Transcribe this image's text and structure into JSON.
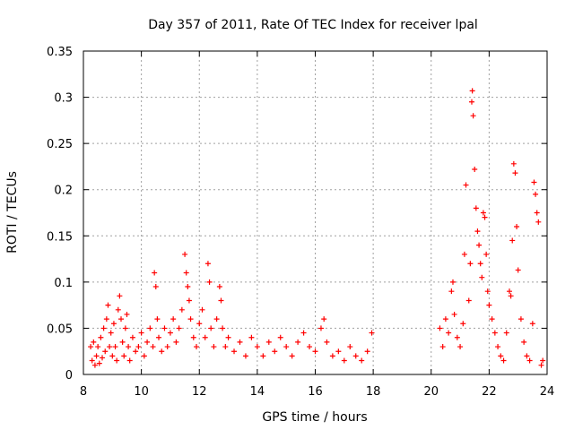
{
  "chart_data": {
    "type": "scatter",
    "title": "Day 357 of 2011, Rate Of TEC Index for receiver lpal",
    "xlabel": "GPS time / hours",
    "ylabel": "ROTI / TECUs",
    "xlim": [
      8,
      24
    ],
    "ylim": [
      0,
      0.35
    ],
    "xticks": [
      8,
      10,
      12,
      14,
      16,
      18,
      20,
      22,
      24
    ],
    "yticks": [
      0,
      0.05,
      0.1,
      0.15,
      0.2,
      0.25,
      0.3,
      0.35
    ],
    "xtick_labels": [
      "8",
      "10",
      "12",
      "14",
      "16",
      "18",
      "20",
      "22",
      "24"
    ],
    "ytick_labels": [
      "0",
      "0.05",
      "0.1",
      "0.15",
      "0.2",
      "0.25",
      "0.3",
      "0.35"
    ],
    "grid": true,
    "legend": "none",
    "marker": "plus",
    "color": "#ff0000",
    "series": [
      {
        "points": [
          [
            8.25,
            0.03
          ],
          [
            8.3,
            0.015
          ],
          [
            8.35,
            0.035
          ],
          [
            8.4,
            0.01
          ],
          [
            8.45,
            0.02
          ],
          [
            8.5,
            0.03
          ],
          [
            8.55,
            0.012
          ],
          [
            8.6,
            0.04
          ],
          [
            8.65,
            0.018
          ],
          [
            8.7,
            0.05
          ],
          [
            8.75,
            0.025
          ],
          [
            8.8,
            0.06
          ],
          [
            8.85,
            0.075
          ],
          [
            8.9,
            0.03
          ],
          [
            8.95,
            0.045
          ],
          [
            9.0,
            0.02
          ],
          [
            9.05,
            0.055
          ],
          [
            9.1,
            0.03
          ],
          [
            9.15,
            0.015
          ],
          [
            9.2,
            0.07
          ],
          [
            9.25,
            0.085
          ],
          [
            9.3,
            0.06
          ],
          [
            9.35,
            0.035
          ],
          [
            9.4,
            0.02
          ],
          [
            9.45,
            0.05
          ],
          [
            9.5,
            0.065
          ],
          [
            9.55,
            0.03
          ],
          [
            9.6,
            0.015
          ],
          [
            9.7,
            0.04
          ],
          [
            9.8,
            0.025
          ],
          [
            9.9,
            0.03
          ],
          [
            10.0,
            0.045
          ],
          [
            10.1,
            0.02
          ],
          [
            10.2,
            0.035
          ],
          [
            10.3,
            0.05
          ],
          [
            10.4,
            0.03
          ],
          [
            10.45,
            0.11
          ],
          [
            10.5,
            0.095
          ],
          [
            10.55,
            0.06
          ],
          [
            10.6,
            0.04
          ],
          [
            10.7,
            0.025
          ],
          [
            10.8,
            0.05
          ],
          [
            10.9,
            0.03
          ],
          [
            11.0,
            0.045
          ],
          [
            11.1,
            0.06
          ],
          [
            11.2,
            0.035
          ],
          [
            11.3,
            0.05
          ],
          [
            11.4,
            0.07
          ],
          [
            11.5,
            0.13
          ],
          [
            11.55,
            0.11
          ],
          [
            11.6,
            0.095
          ],
          [
            11.65,
            0.08
          ],
          [
            11.7,
            0.06
          ],
          [
            11.8,
            0.04
          ],
          [
            11.9,
            0.03
          ],
          [
            12.0,
            0.055
          ],
          [
            12.1,
            0.07
          ],
          [
            12.2,
            0.04
          ],
          [
            12.3,
            0.12
          ],
          [
            12.35,
            0.1
          ],
          [
            12.4,
            0.05
          ],
          [
            12.5,
            0.03
          ],
          [
            12.6,
            0.06
          ],
          [
            12.7,
            0.095
          ],
          [
            12.75,
            0.08
          ],
          [
            12.8,
            0.05
          ],
          [
            12.9,
            0.03
          ],
          [
            13.0,
            0.04
          ],
          [
            13.2,
            0.025
          ],
          [
            13.4,
            0.035
          ],
          [
            13.6,
            0.02
          ],
          [
            13.8,
            0.04
          ],
          [
            14.0,
            0.03
          ],
          [
            14.2,
            0.02
          ],
          [
            14.4,
            0.035
          ],
          [
            14.6,
            0.025
          ],
          [
            14.8,
            0.04
          ],
          [
            15.0,
            0.03
          ],
          [
            15.2,
            0.02
          ],
          [
            15.4,
            0.035
          ],
          [
            15.6,
            0.045
          ],
          [
            15.8,
            0.03
          ],
          [
            16.0,
            0.025
          ],
          [
            16.2,
            0.05
          ],
          [
            16.3,
            0.06
          ],
          [
            16.4,
            0.035
          ],
          [
            16.6,
            0.02
          ],
          [
            16.8,
            0.025
          ],
          [
            17.0,
            0.015
          ],
          [
            17.2,
            0.03
          ],
          [
            17.4,
            0.02
          ],
          [
            17.6,
            0.015
          ],
          [
            17.8,
            0.025
          ],
          [
            17.95,
            0.045
          ],
          [
            20.3,
            0.05
          ],
          [
            20.4,
            0.03
          ],
          [
            20.5,
            0.06
          ],
          [
            20.6,
            0.045
          ],
          [
            20.7,
            0.09
          ],
          [
            20.75,
            0.1
          ],
          [
            20.8,
            0.065
          ],
          [
            20.9,
            0.04
          ],
          [
            21.0,
            0.03
          ],
          [
            21.1,
            0.055
          ],
          [
            21.15,
            0.13
          ],
          [
            21.2,
            0.205
          ],
          [
            21.3,
            0.08
          ],
          [
            21.35,
            0.12
          ],
          [
            21.4,
            0.295
          ],
          [
            21.42,
            0.307
          ],
          [
            21.45,
            0.28
          ],
          [
            21.5,
            0.222
          ],
          [
            21.55,
            0.18
          ],
          [
            21.6,
            0.155
          ],
          [
            21.65,
            0.14
          ],
          [
            21.7,
            0.12
          ],
          [
            21.75,
            0.105
          ],
          [
            21.8,
            0.175
          ],
          [
            21.85,
            0.17
          ],
          [
            21.9,
            0.13
          ],
          [
            21.95,
            0.09
          ],
          [
            22.0,
            0.075
          ],
          [
            22.1,
            0.06
          ],
          [
            22.2,
            0.045
          ],
          [
            22.3,
            0.03
          ],
          [
            22.4,
            0.02
          ],
          [
            22.5,
            0.015
          ],
          [
            22.6,
            0.045
          ],
          [
            22.7,
            0.09
          ],
          [
            22.75,
            0.085
          ],
          [
            22.8,
            0.145
          ],
          [
            22.85,
            0.228
          ],
          [
            22.9,
            0.218
          ],
          [
            22.95,
            0.16
          ],
          [
            23.0,
            0.113
          ],
          [
            23.1,
            0.06
          ],
          [
            23.2,
            0.035
          ],
          [
            23.3,
            0.02
          ],
          [
            23.4,
            0.015
          ],
          [
            23.5,
            0.055
          ],
          [
            23.55,
            0.208
          ],
          [
            23.6,
            0.195
          ],
          [
            23.65,
            0.175
          ],
          [
            23.7,
            0.165
          ],
          [
            23.8,
            0.01
          ],
          [
            23.85,
            0.015
          ]
        ]
      }
    ]
  }
}
